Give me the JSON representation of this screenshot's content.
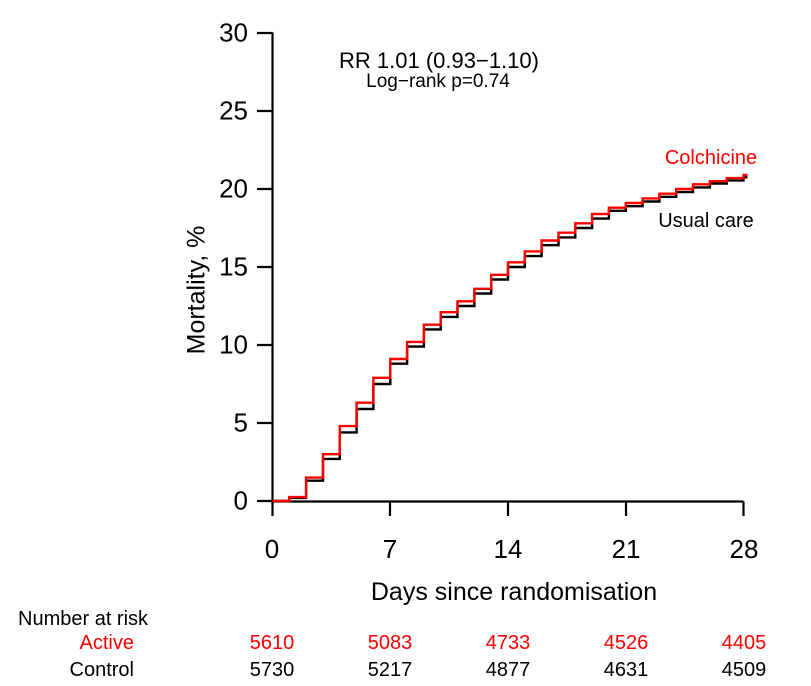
{
  "figure": {
    "annotation_line1": "RR 1.01 (0.93−1.10)",
    "annotation_line2": "Log−rank p=0.74",
    "y_axis_label": "Mortality, %",
    "x_axis_label": "Days since randomisation",
    "curve_label_colchicine": "Colchicine",
    "curve_label_usual_care": "Usual care"
  },
  "axes": {
    "y_ticks": [
      "0",
      "5",
      "10",
      "15",
      "20",
      "25",
      "30"
    ],
    "x_ticks": [
      "0",
      "7",
      "14",
      "21",
      "28"
    ]
  },
  "risk_table": {
    "header": "Number at risk",
    "rows": [
      {
        "label": "Active",
        "color": "#ff0000",
        "values": [
          "5610",
          "5083",
          "4733",
          "4526",
          "4405"
        ]
      },
      {
        "label": "Control",
        "color": "#000000",
        "values": [
          "5730",
          "5217",
          "4877",
          "4631",
          "4509"
        ]
      }
    ]
  },
  "colors": {
    "colchicine": "#ff0000",
    "usual_care": "#000000",
    "axis": "#000000",
    "background": "#ffffff"
  },
  "chart_data": {
    "type": "line",
    "subtype": "kaplan-meier-step",
    "title": "",
    "xlabel": "Days since randomisation",
    "ylabel": "Mortality, %",
    "xlim": [
      0,
      28
    ],
    "ylim": [
      0,
      30
    ],
    "x_tick_values": [
      0,
      7,
      14,
      21,
      28
    ],
    "y_tick_values": [
      0,
      5,
      10,
      15,
      20,
      25,
      30
    ],
    "grid": false,
    "legend_position": "labels-at-line-end",
    "x": [
      0,
      1,
      2,
      3,
      4,
      5,
      6,
      7,
      8,
      9,
      10,
      11,
      12,
      13,
      14,
      15,
      16,
      17,
      18,
      19,
      20,
      21,
      22,
      23,
      24,
      25,
      26,
      27,
      28
    ],
    "series": [
      {
        "name": "Usual care",
        "color": "#000000",
        "values": [
          0,
          0.2,
          1.3,
          2.7,
          4.4,
          5.9,
          7.5,
          8.8,
          9.9,
          11.0,
          11.8,
          12.5,
          13.3,
          14.2,
          15.0,
          15.7,
          16.4,
          16.9,
          17.5,
          18.1,
          18.6,
          18.9,
          19.2,
          19.5,
          19.8,
          20.1,
          20.35,
          20.55,
          20.75
        ]
      },
      {
        "name": "Colchicine",
        "color": "#ff0000",
        "values": [
          0,
          0.25,
          1.5,
          3.0,
          4.8,
          6.3,
          7.9,
          9.1,
          10.2,
          11.3,
          12.1,
          12.8,
          13.6,
          14.5,
          15.3,
          16.0,
          16.7,
          17.2,
          17.8,
          18.4,
          18.8,
          19.1,
          19.4,
          19.7,
          20.0,
          20.3,
          20.5,
          20.7,
          20.9
        ]
      }
    ],
    "annotations": [
      "RR 1.01 (0.93−1.10)",
      "Log−rank p=0.74"
    ],
    "number_at_risk": {
      "days": [
        0,
        7,
        14,
        21,
        28
      ],
      "Active": [
        5610,
        5083,
        4733,
        4526,
        4405
      ],
      "Control": [
        5730,
        5217,
        4877,
        4631,
        4509
      ]
    }
  }
}
